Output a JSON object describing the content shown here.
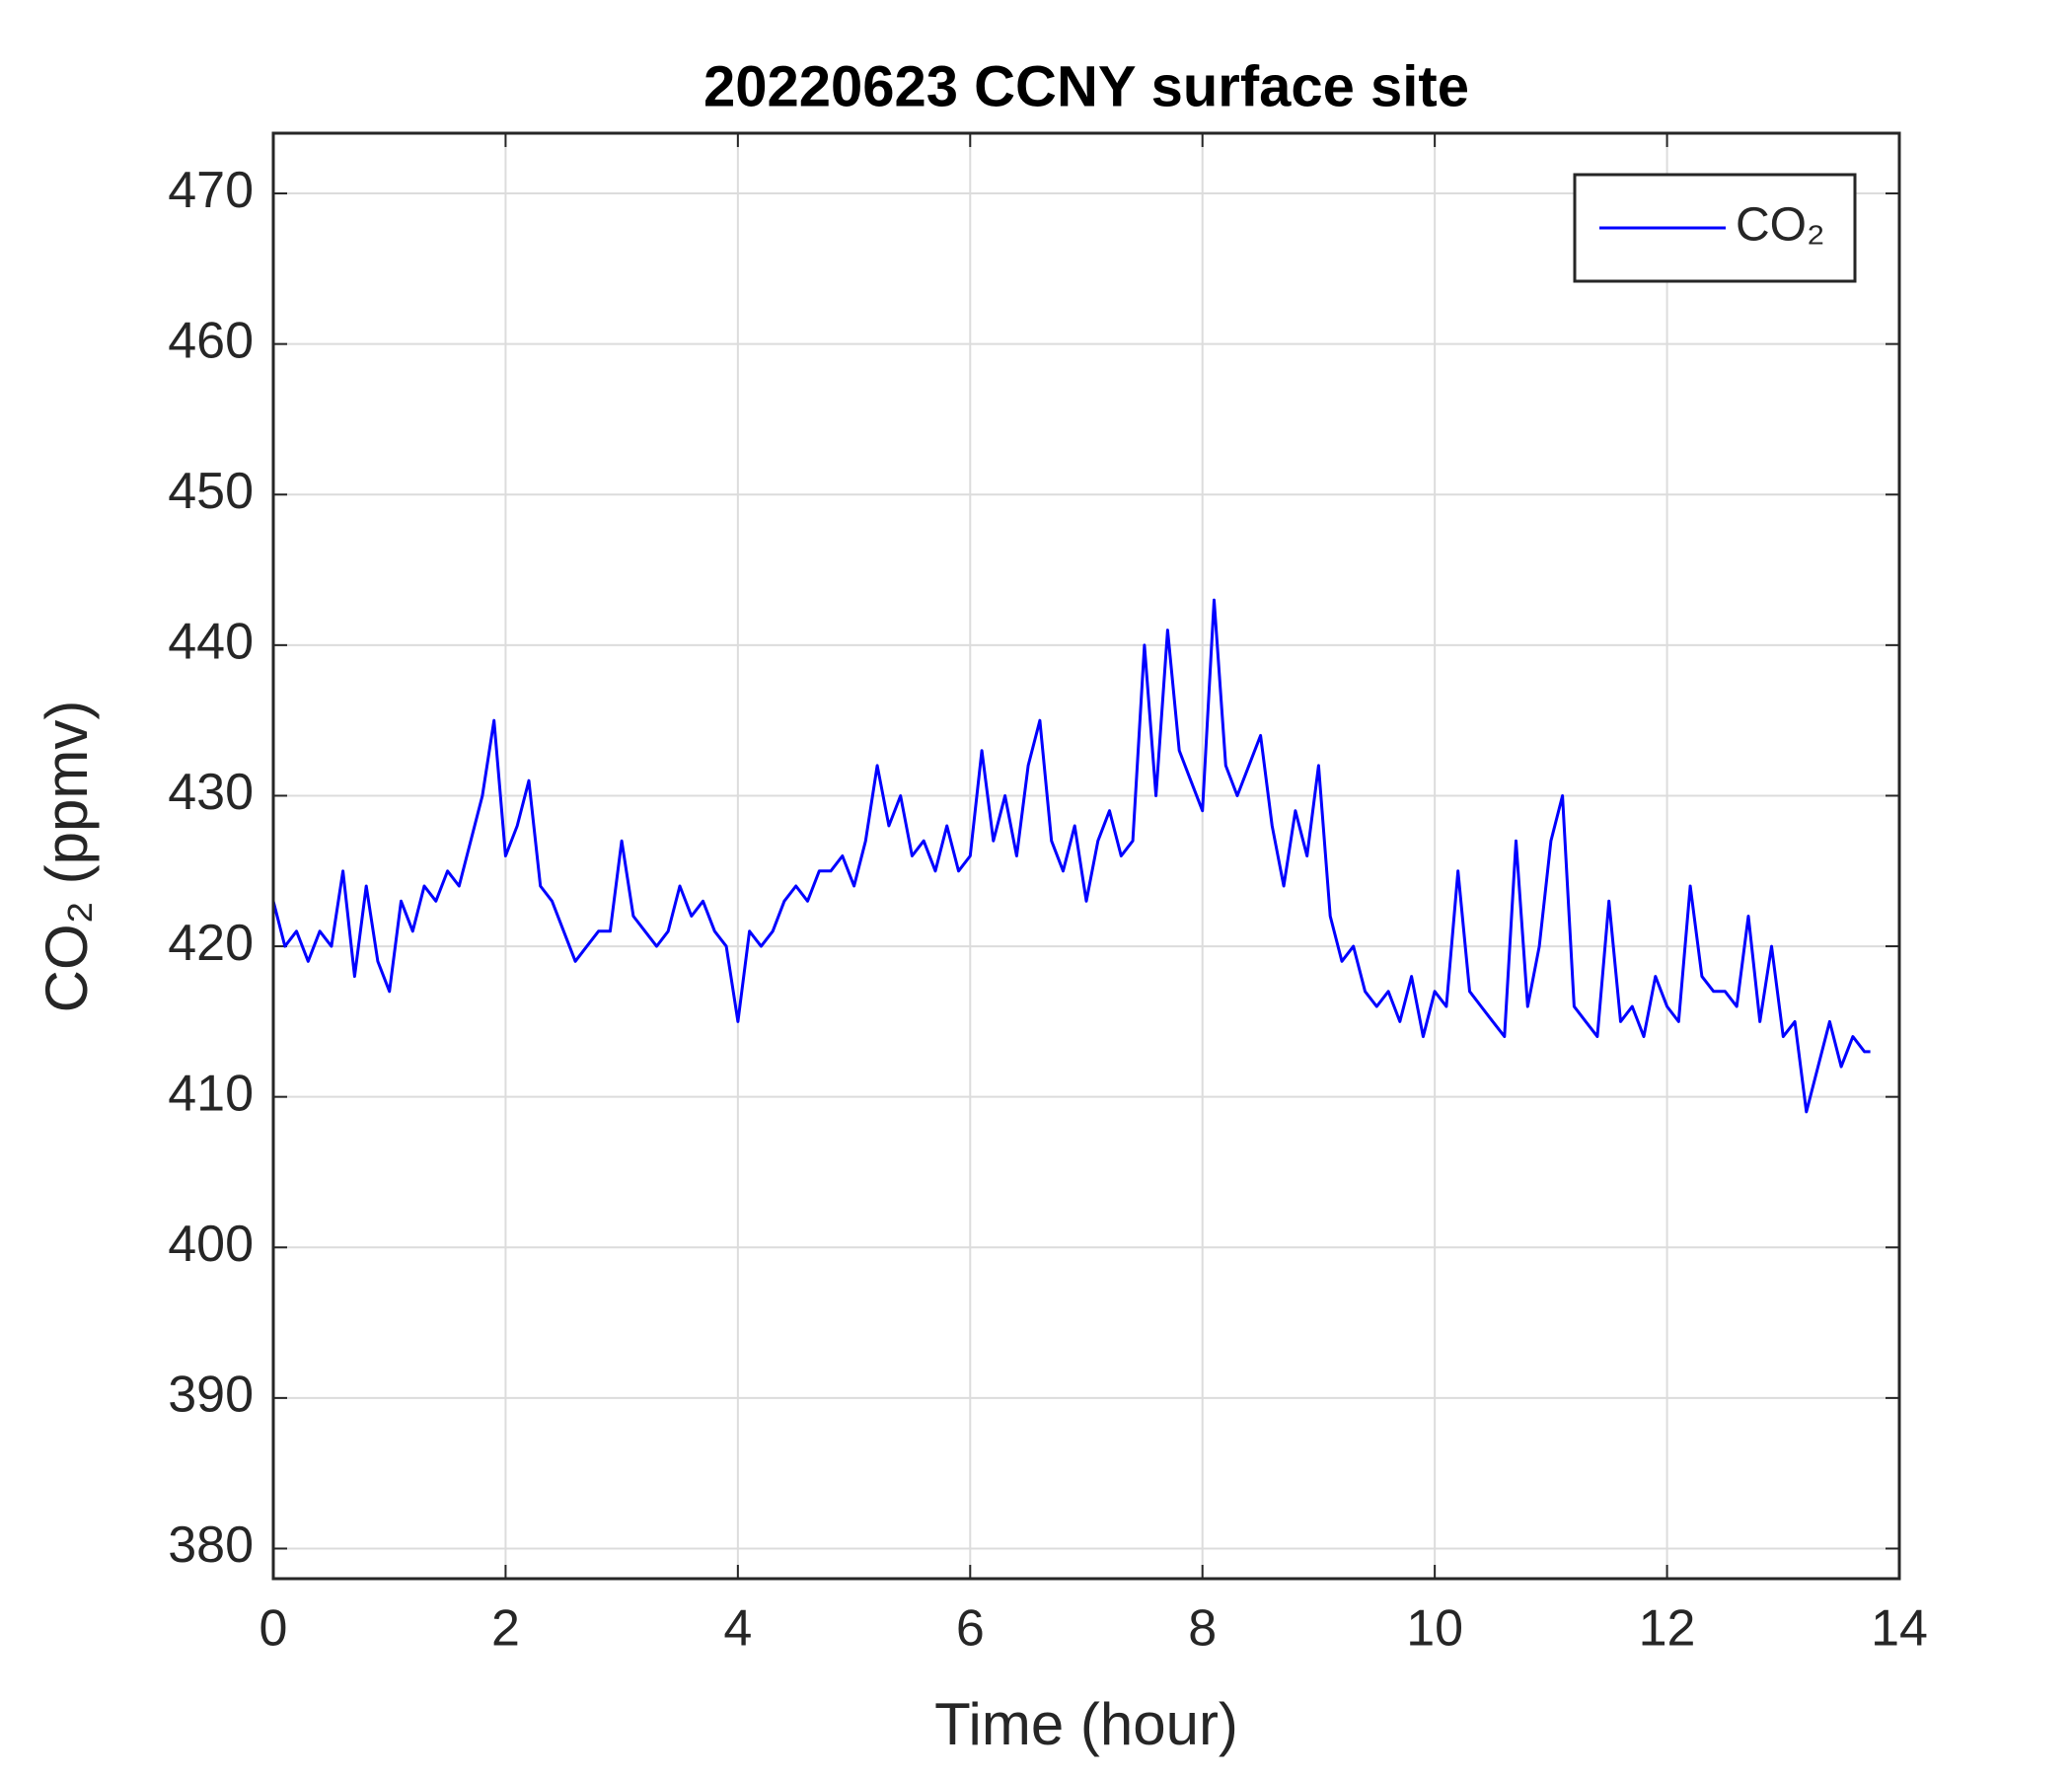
{
  "chart_data": {
    "type": "line",
    "title": "20220623 CCNY surface site",
    "xlabel": "Time (hour)",
    "ylabel": "CO₂ (ppmv)",
    "x": [
      0,
      0.1,
      0.2,
      0.3,
      0.4,
      0.5,
      0.6,
      0.7,
      0.8,
      0.9,
      1.0,
      1.1,
      1.2,
      1.3,
      1.4,
      1.5,
      1.6,
      1.7,
      1.8,
      1.9,
      2.0,
      2.1,
      2.2,
      2.3,
      2.4,
      2.5,
      2.6,
      2.7,
      2.8,
      2.9,
      3.0,
      3.1,
      3.2,
      3.3,
      3.4,
      3.5,
      3.6,
      3.7,
      3.8,
      3.9,
      4.0,
      4.1,
      4.2,
      4.3,
      4.4,
      4.5,
      4.6,
      4.7,
      4.8,
      4.9,
      5.0,
      5.1,
      5.2,
      5.3,
      5.4,
      5.5,
      5.6,
      5.7,
      5.8,
      5.9,
      6.0,
      6.1,
      6.2,
      6.3,
      6.4,
      6.5,
      6.6,
      6.7,
      6.8,
      6.9,
      7.0,
      7.1,
      7.2,
      7.3,
      7.4,
      7.5,
      7.6,
      7.7,
      7.8,
      7.9,
      8.0,
      8.1,
      8.2,
      8.3,
      8.4,
      8.5,
      8.6,
      8.7,
      8.8,
      8.9,
      9.0,
      9.1,
      9.2,
      9.3,
      9.4,
      9.5,
      9.6,
      9.7,
      9.8,
      9.9,
      10.0,
      10.1,
      10.2,
      10.3,
      10.4,
      10.5,
      10.6,
      10.7,
      10.8,
      10.9,
      11.0,
      11.1,
      11.2,
      11.3,
      11.4,
      11.5,
      11.6,
      11.7,
      11.8,
      11.9,
      12.0,
      12.1,
      12.2,
      12.3,
      12.4,
      12.5,
      12.6,
      12.7,
      12.8,
      12.9,
      13.0,
      13.1,
      13.2,
      13.3,
      13.4,
      13.5,
      13.6,
      13.7,
      13.75
    ],
    "series": [
      {
        "name": "CO₂",
        "color": "#0000ff",
        "values": [
          423,
          420,
          421,
          419,
          421,
          420,
          425,
          418,
          424,
          419,
          417,
          423,
          421,
          424,
          423,
          425,
          424,
          427,
          430,
          435,
          426,
          428,
          431,
          424,
          423,
          421,
          419,
          420,
          421,
          421,
          427,
          422,
          421,
          420,
          421,
          424,
          422,
          423,
          421,
          420,
          415,
          421,
          420,
          421,
          423,
          424,
          423,
          425,
          425,
          426,
          424,
          427,
          432,
          428,
          430,
          426,
          427,
          425,
          428,
          425,
          426,
          433,
          427,
          430,
          426,
          432,
          435,
          427,
          425,
          428,
          423,
          427,
          429,
          426,
          427,
          440,
          430,
          441,
          433,
          431,
          429,
          443,
          432,
          430,
          432,
          434,
          428,
          424,
          429,
          426,
          432,
          422,
          419,
          420,
          417,
          416,
          417,
          415,
          418,
          414,
          417,
          416,
          425,
          417,
          416,
          415,
          414,
          427,
          416,
          420,
          427,
          430,
          416,
          415,
          414,
          423,
          415,
          416,
          414,
          418,
          416,
          415,
          424,
          418,
          417,
          417,
          416,
          422,
          415,
          420,
          414,
          415,
          409,
          412,
          415,
          412,
          414,
          413,
          413
        ]
      }
    ],
    "xlim": [
      0,
      14
    ],
    "xticks": [
      0,
      2,
      4,
      6,
      8,
      10,
      12,
      14
    ],
    "ylim": [
      378,
      474
    ],
    "yticks": [
      380,
      390,
      400,
      410,
      420,
      430,
      440,
      450,
      460,
      470
    ],
    "grid": true,
    "legend": "northeast"
  }
}
